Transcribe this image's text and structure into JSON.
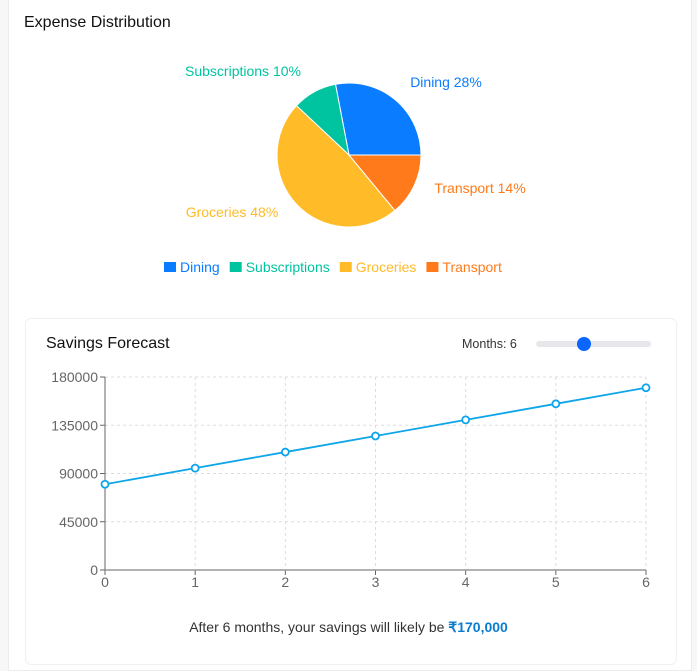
{
  "pie_card": {
    "title": "Expense Distribution"
  },
  "forecast_card": {
    "title": "Savings Forecast",
    "months_label": "Months: 6",
    "slider_value": 6,
    "slider_min": 1,
    "slider_max": 12,
    "summary_prefix": "After 6 months, your savings will likely be ",
    "summary_value": "₹170,000"
  },
  "chart_data": [
    {
      "type": "pie",
      "title": "Expense Distribution",
      "slices": [
        {
          "name": "Dining",
          "value": 28,
          "label": "Dining 28%",
          "color": "#0a7cff"
        },
        {
          "name": "Subscriptions",
          "value": 10,
          "label": "Subscriptions 10%",
          "color": "#00c49f"
        },
        {
          "name": "Groceries",
          "value": 48,
          "label": "Groceries 48%",
          "color": "#ffbb28"
        },
        {
          "name": "Transport",
          "value": 14,
          "label": "Transport 14%",
          "color": "#ff7a1a"
        }
      ],
      "legend": "bottom"
    },
    {
      "type": "line",
      "title": "Savings Forecast",
      "x": [
        0,
        1,
        2,
        3,
        4,
        5,
        6
      ],
      "series": [
        {
          "name": "Savings",
          "values": [
            80000,
            95000,
            110000,
            125000,
            140000,
            155000,
            170000
          ],
          "color": "#0ea5e9"
        }
      ],
      "xlim": [
        0,
        6
      ],
      "ylim": [
        0,
        180000
      ],
      "yticks": [
        0,
        45000,
        90000,
        135000,
        180000
      ],
      "grid": true,
      "xlabel": "",
      "ylabel": ""
    }
  ]
}
